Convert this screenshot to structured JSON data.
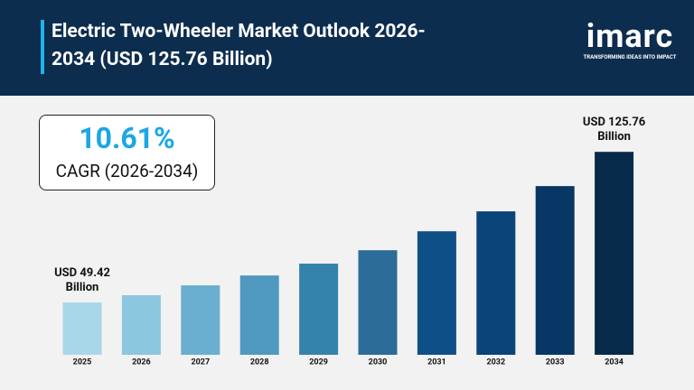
{
  "chart_data": {
    "type": "bar",
    "title": "Electric Two-Wheeler Market Outlook 2026-2034 (USD 125.76 Billion)",
    "brand": "imarc",
    "tagline": "TRANSFORMING IDEAS INTO IMPACT",
    "annotations": [
      "10.61%",
      "CAGR (2026-2034)"
    ],
    "categories": [
      "2025",
      "2026",
      "2027",
      "2028",
      "2029",
      "2030",
      "2031",
      "2032",
      "2033",
      "2034"
    ],
    "values": [
      49.42,
      53.1,
      58.1,
      63.1,
      69.1,
      75.9,
      85.5,
      95.6,
      108.4,
      125.76
    ],
    "value_labels": [
      "USD 49.42 Billion",
      null,
      null,
      null,
      null,
      null,
      null,
      null,
      null,
      "USD 125.76 Billion"
    ],
    "colors": [
      "#a8d7ea",
      "#8cc6df",
      "#6aafcf",
      "#4f98bf",
      "#3383ad",
      "#2b6c98",
      "#0f4f87",
      "#0a4478",
      "#083766",
      "#072a4b"
    ],
    "ylim": [
      22.9,
      135
    ]
  }
}
